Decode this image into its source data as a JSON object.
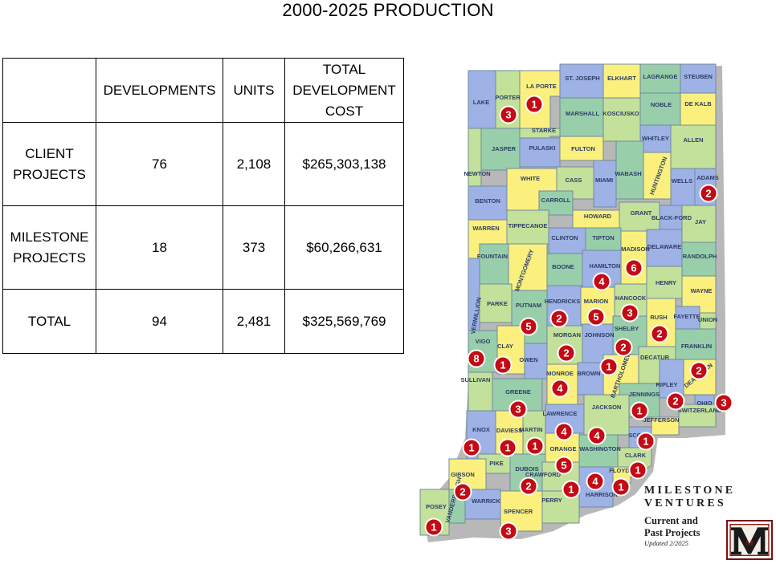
{
  "title": "2000-2025 PRODUCTION",
  "table": {
    "headers": [
      "",
      "DEVELOPMENTS",
      "UNITS",
      "TOTAL\nDEVELOPMENT\nCOST"
    ],
    "rows": [
      {
        "label": "CLIENT\nPROJECTS",
        "developments": "76",
        "units": "2,108",
        "cost": "$265,303,138"
      },
      {
        "label": "MILESTONE\nPROJECTS",
        "developments": "18",
        "units": "373",
        "cost": "$60,266,631"
      },
      {
        "label": "TOTAL",
        "developments": "94",
        "units": "2,481",
        "cost": "$325,569,769"
      }
    ]
  },
  "colors": {
    "green": "#c3e19a",
    "blue": "#9eb2e6",
    "yellow": "#fbf07e",
    "teal": "#98cfaa",
    "marker": "#c40a14",
    "county_label": "#2c3e66"
  },
  "counties": [
    {
      "name": "LAKE",
      "color": "blue"
    },
    {
      "name": "PORTER",
      "color": "green"
    },
    {
      "name": "LA PORTE",
      "color": "yellow"
    },
    {
      "name": "ST. JOSEPH",
      "color": "blue"
    },
    {
      "name": "ELKHART",
      "color": "yellow"
    },
    {
      "name": "LAGRANGE",
      "color": "teal"
    },
    {
      "name": "STEUBEN",
      "color": "blue"
    },
    {
      "name": "MARSHALL",
      "color": "teal"
    },
    {
      "name": "KOSCIUSKO",
      "color": "green"
    },
    {
      "name": "NOBLE",
      "color": "teal"
    },
    {
      "name": "DE KALB",
      "color": "yellow"
    },
    {
      "name": "STARKE",
      "color": "green"
    },
    {
      "name": "JASPER",
      "color": "teal"
    },
    {
      "name": "NEWTON",
      "color": "green"
    },
    {
      "name": "PULASKI",
      "color": "blue"
    },
    {
      "name": "FULTON",
      "color": "yellow"
    },
    {
      "name": "WHITLEY",
      "color": "blue"
    },
    {
      "name": "ALLEN",
      "color": "green"
    },
    {
      "name": "WHITE",
      "color": "yellow"
    },
    {
      "name": "CASS",
      "color": "green"
    },
    {
      "name": "MIAMI",
      "color": "blue"
    },
    {
      "name": "WABASH",
      "color": "teal"
    },
    {
      "name": "HUNTINGTON",
      "color": "yellow"
    },
    {
      "name": "WELLS",
      "color": "blue"
    },
    {
      "name": "ADAMS",
      "color": "blue"
    },
    {
      "name": "BENTON",
      "color": "blue"
    },
    {
      "name": "CARROLL",
      "color": "teal"
    },
    {
      "name": "HOWARD",
      "color": "yellow"
    },
    {
      "name": "GRANT",
      "color": "green"
    },
    {
      "name": "BLACK-FORD",
      "color": "blue"
    },
    {
      "name": "JAY",
      "color": "green"
    },
    {
      "name": "WARREN",
      "color": "yellow"
    },
    {
      "name": "TIPPECANOE",
      "color": "green"
    },
    {
      "name": "CLINTON",
      "color": "blue"
    },
    {
      "name": "TIPTON",
      "color": "teal"
    },
    {
      "name": "MADISON",
      "color": "yellow"
    },
    {
      "name": "DELAWARE",
      "color": "blue"
    },
    {
      "name": "RANDOLPH",
      "color": "teal"
    },
    {
      "name": "FOUNTAIN",
      "color": "teal"
    },
    {
      "name": "MONTGOMERY",
      "color": "yellow"
    },
    {
      "name": "BOONE",
      "color": "teal"
    },
    {
      "name": "HAMILTON",
      "color": "blue"
    },
    {
      "name": "HENRY",
      "color": "green"
    },
    {
      "name": "WAYNE",
      "color": "yellow"
    },
    {
      "name": "VERMILLION",
      "color": "blue"
    },
    {
      "name": "PARKE",
      "color": "green"
    },
    {
      "name": "PUTNAM",
      "color": "teal"
    },
    {
      "name": "HENDRICKS",
      "color": "blue"
    },
    {
      "name": "MARION",
      "color": "yellow"
    },
    {
      "name": "HANCOCK",
      "color": "green"
    },
    {
      "name": "RUSH",
      "color": "yellow"
    },
    {
      "name": "FAYETTE",
      "color": "blue"
    },
    {
      "name": "UNION",
      "color": "green"
    },
    {
      "name": "VIGO",
      "color": "teal"
    },
    {
      "name": "CLAY",
      "color": "yellow"
    },
    {
      "name": "OWEN",
      "color": "blue"
    },
    {
      "name": "MORGAN",
      "color": "green"
    },
    {
      "name": "JOHNSON",
      "color": "blue"
    },
    {
      "name": "SHELBY",
      "color": "teal"
    },
    {
      "name": "DECATUR",
      "color": "green"
    },
    {
      "name": "FRANKLIN",
      "color": "teal"
    },
    {
      "name": "SULLIVAN",
      "color": "green"
    },
    {
      "name": "GREENE",
      "color": "teal"
    },
    {
      "name": "MONROE",
      "color": "yellow"
    },
    {
      "name": "BROWN",
      "color": "blue"
    },
    {
      "name": "BARTHOLOMEW",
      "color": "yellow"
    },
    {
      "name": "RIPLEY",
      "color": "blue"
    },
    {
      "name": "DEARBORN",
      "color": "yellow"
    },
    {
      "name": "JENNINGS",
      "color": "teal"
    },
    {
      "name": "OHIO",
      "color": "blue"
    },
    {
      "name": "SWITZERLAND",
      "color": "green"
    },
    {
      "name": "KNOX",
      "color": "blue"
    },
    {
      "name": "DAVIESS",
      "color": "yellow"
    },
    {
      "name": "MARTIN",
      "color": "green"
    },
    {
      "name": "LAWRENCE",
      "color": "blue"
    },
    {
      "name": "JACKSON",
      "color": "green"
    },
    {
      "name": "JEFFERSON",
      "color": "yellow"
    },
    {
      "name": "SCOTT",
      "color": "blue"
    },
    {
      "name": "PIKE",
      "color": "green"
    },
    {
      "name": "DUBOIS",
      "color": "teal"
    },
    {
      "name": "ORANGE",
      "color": "yellow"
    },
    {
      "name": "WASHINGTON",
      "color": "teal"
    },
    {
      "name": "CLARK",
      "color": "green"
    },
    {
      "name": "GIBSON",
      "color": "yellow"
    },
    {
      "name": "CRAWFORD",
      "color": "green"
    },
    {
      "name": "FLOYD",
      "color": "yellow"
    },
    {
      "name": "HARRISON",
      "color": "blue"
    },
    {
      "name": "POSEY",
      "color": "green"
    },
    {
      "name": "VANDERBURGH",
      "color": "teal"
    },
    {
      "name": "WARRICK",
      "color": "blue"
    },
    {
      "name": "SPENCER",
      "color": "yellow"
    },
    {
      "name": "PERRY",
      "color": "green"
    }
  ],
  "markers": [
    {
      "county": "PORTER",
      "count": "3"
    },
    {
      "county": "LA PORTE",
      "count": "1"
    },
    {
      "county": "ADAMS",
      "count": "2"
    },
    {
      "county": "MADISON",
      "count": "6"
    },
    {
      "county": "HAMILTON",
      "count": "4"
    },
    {
      "county": "HANCOCK",
      "count": "3"
    },
    {
      "county": "HENDRICKS",
      "count": "2"
    },
    {
      "county": "MARION",
      "count": "5"
    },
    {
      "county": "PUTNAM",
      "count": "5"
    },
    {
      "county": "RUSH",
      "count": "2"
    },
    {
      "county": "SHELBY",
      "count": "2"
    },
    {
      "county": "MORGAN",
      "count": "2"
    },
    {
      "county": "VIGO",
      "count": "8"
    },
    {
      "county": "CLAY",
      "count": "1"
    },
    {
      "county": "BARTHOLOMEW",
      "count": "1"
    },
    {
      "county": "DEARBORN",
      "count": "2"
    },
    {
      "county": "MONROE",
      "count": "4"
    },
    {
      "county": "RIPLEY",
      "count": "2"
    },
    {
      "county": "OHIO",
      "count": "3"
    },
    {
      "county": "GREENE",
      "count": "3"
    },
    {
      "county": "JENNINGS",
      "count": "1"
    },
    {
      "county": "LAWRENCE",
      "count": "4"
    },
    {
      "county": "JACKSON",
      "count": "4"
    },
    {
      "county": "SCOTT",
      "count": "1"
    },
    {
      "county": "KNOX",
      "count": "1"
    },
    {
      "county": "DAVIESS",
      "count": "1"
    },
    {
      "county": "MARTIN",
      "count": "1"
    },
    {
      "county": "ORANGE",
      "count": "5"
    },
    {
      "county": "CLARK",
      "count": "1"
    },
    {
      "county": "GIBSON",
      "count": "2"
    },
    {
      "county": "DUBOIS",
      "count": "2"
    },
    {
      "county": "CRAWFORD",
      "count": "1"
    },
    {
      "county": "HARRISON",
      "count": "4"
    },
    {
      "county": "FLOYD",
      "count": "1"
    },
    {
      "county": "POSEY",
      "count": "1"
    },
    {
      "county": "SPENCER",
      "count": "3"
    }
  ],
  "brand": {
    "name_line1": "MILESTONE",
    "name_line2": "VENTURES",
    "subtitle_line1": "Current and",
    "subtitle_line2": "Past Projects",
    "updated": "Updated 2/2025",
    "logo_letter": "M"
  }
}
